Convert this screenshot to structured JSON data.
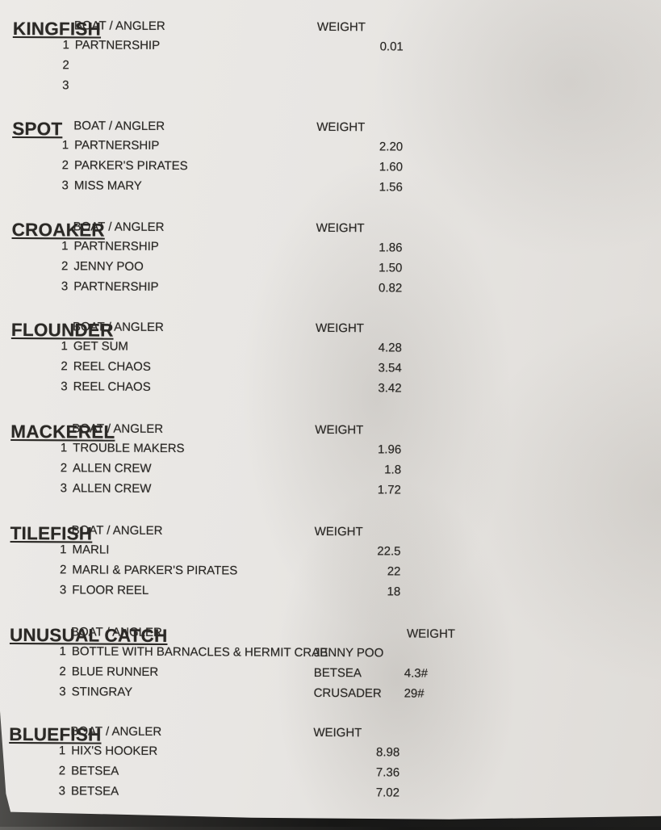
{
  "columns": {
    "boat_angler": "BOAT / ANGLER",
    "weight": "WEIGHT"
  },
  "sections": [
    {
      "title": "KINGFISH",
      "rows": [
        {
          "rank": "1",
          "name": "PARTNERSHIP",
          "boat": "",
          "weight": "0.01"
        },
        {
          "rank": "2",
          "name": "",
          "boat": "",
          "weight": ""
        },
        {
          "rank": "3",
          "name": "",
          "boat": "",
          "weight": ""
        }
      ]
    },
    {
      "title": "SPOT",
      "rows": [
        {
          "rank": "1",
          "name": "PARTNERSHIP",
          "boat": "",
          "weight": "2.20"
        },
        {
          "rank": "2",
          "name": "PARKER'S PIRATES",
          "boat": "",
          "weight": "1.60"
        },
        {
          "rank": "3",
          "name": "MISS MARY",
          "boat": "",
          "weight": "1.56"
        }
      ]
    },
    {
      "title": "CROAKER",
      "rows": [
        {
          "rank": "1",
          "name": "PARTNERSHIP",
          "boat": "",
          "weight": "1.86"
        },
        {
          "rank": "2",
          "name": "JENNY POO",
          "boat": "",
          "weight": "1.50"
        },
        {
          "rank": "3",
          "name": "PARTNERSHIP",
          "boat": "",
          "weight": "0.82"
        }
      ]
    },
    {
      "title": "FLOUNDER",
      "rows": [
        {
          "rank": "1",
          "name": "GET SUM",
          "boat": "",
          "weight": "4.28"
        },
        {
          "rank": "2",
          "name": "REEL CHAOS",
          "boat": "",
          "weight": "3.54"
        },
        {
          "rank": "3",
          "name": "REEL CHAOS",
          "boat": "",
          "weight": "3.42"
        }
      ]
    },
    {
      "title": "MACKEREL",
      "rows": [
        {
          "rank": "1",
          "name": "TROUBLE MAKERS",
          "boat": "",
          "weight": "1.96"
        },
        {
          "rank": "2",
          "name": "ALLEN CREW",
          "boat": "",
          "weight": "1.8"
        },
        {
          "rank": "3",
          "name": "ALLEN CREW",
          "boat": "",
          "weight": "1.72"
        }
      ]
    },
    {
      "title": "TILEFISH",
      "rows": [
        {
          "rank": "1",
          "name": "MARLI",
          "boat": "",
          "weight": "22.5"
        },
        {
          "rank": "2",
          "name": "MARLI & PARKER'S PIRATES",
          "boat": "",
          "weight": "22"
        },
        {
          "rank": "3",
          "name": "FLOOR REEL",
          "boat": "",
          "weight": "18"
        }
      ]
    },
    {
      "title": "UNUSUAL CATCH",
      "rows": [
        {
          "rank": "1",
          "name": "BOTTLE WITH BARNACLES & HERMIT CRAB",
          "boat": "JENNY POO",
          "weight": ""
        },
        {
          "rank": "2",
          "name": "BLUE RUNNER",
          "boat": "BETSEA",
          "weight": "4.3#"
        },
        {
          "rank": "3",
          "name": "STINGRAY",
          "boat": "CRUSADER",
          "weight": "29#"
        }
      ]
    },
    {
      "title": "BLUEFISH",
      "rows": [
        {
          "rank": "1",
          "name": "HIX'S HOOKER",
          "boat": "",
          "weight": "8.98"
        },
        {
          "rank": "2",
          "name": "BETSEA",
          "boat": "",
          "weight": "7.36"
        },
        {
          "rank": "3",
          "name": "BETSEA",
          "boat": "",
          "weight": "7.02"
        }
      ]
    }
  ]
}
